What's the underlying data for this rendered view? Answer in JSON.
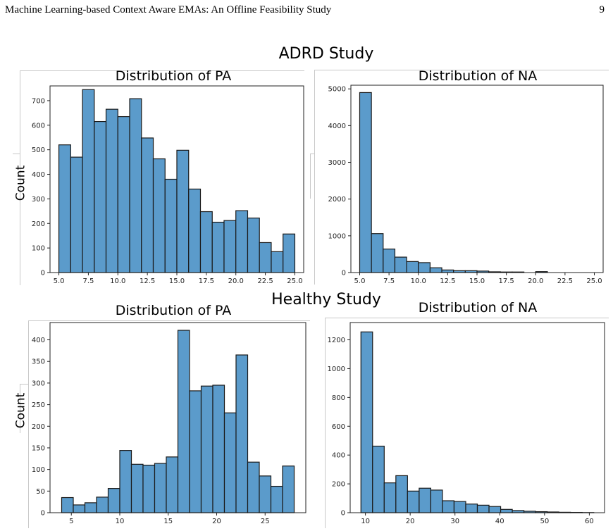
{
  "running_head": "Machine Learning-based Context Aware EMAs: An Offline Feasibility Study",
  "page_number": "9",
  "figure": {
    "adrd_title": "ADRD Study",
    "healthy_title": "Healthy Study",
    "count_label": "Count"
  },
  "bar_color": "#5b9bcb",
  "edge_color": "#1a1a1a",
  "chart_data": [
    {
      "id": "adrd-pa",
      "type": "bar",
      "title": "Distribution of PA",
      "xlim": [
        4.25,
        25.75
      ],
      "ylim": [
        0,
        760
      ],
      "xticks": [
        5.0,
        7.5,
        10.0,
        12.5,
        15.0,
        17.5,
        20.0,
        22.5,
        25.0
      ],
      "xtick_labels": [
        "5.0",
        "7.5",
        "10.0",
        "12.5",
        "15.0",
        "17.5",
        "20.0",
        "22.5",
        "25.0"
      ],
      "yticks": [
        0,
        100,
        200,
        300,
        400,
        500,
        600,
        700
      ],
      "bin_edges": [
        5.0,
        6.0,
        7.0,
        8.0,
        9.0,
        10.0,
        11.0,
        12.0,
        13.0,
        14.0,
        15.0,
        16.0,
        17.0,
        18.0,
        19.0,
        20.0,
        21.0,
        22.0,
        23.0,
        24.0,
        25.0
      ],
      "values": [
        520,
        470,
        745,
        615,
        665,
        635,
        708,
        548,
        463,
        380,
        498,
        340,
        248,
        205,
        212,
        252,
        222,
        122,
        85,
        157
      ]
    },
    {
      "id": "adrd-na",
      "type": "bar",
      "title": "Distribution of NA",
      "xlim": [
        4.25,
        25.75
      ],
      "ylim": [
        0,
        5100
      ],
      "xticks": [
        5.0,
        7.5,
        10.0,
        12.5,
        15.0,
        17.5,
        20.0,
        22.5,
        25.0
      ],
      "xtick_labels": [
        "5.0",
        "7.5",
        "10.0",
        "12.5",
        "15.0",
        "17.5",
        "20.0",
        "22.5",
        "25.0"
      ],
      "yticks": [
        0,
        1000,
        2000,
        3000,
        4000,
        5000
      ],
      "bin_edges": [
        5.0,
        6.0,
        7.0,
        8.0,
        9.0,
        10.0,
        11.0,
        12.0,
        13.0,
        14.0,
        15.0,
        16.0,
        17.0,
        18.0,
        19.0,
        20.0,
        21.0,
        22.0,
        23.0,
        24.0,
        25.0
      ],
      "values": [
        4900,
        1060,
        640,
        420,
        300,
        270,
        130,
        70,
        50,
        50,
        40,
        20,
        15,
        15,
        0,
        25,
        0,
        0,
        0,
        0
      ]
    },
    {
      "id": "healthy-pa",
      "type": "bar",
      "title": "Distribution of PA",
      "xlim": [
        2.8,
        29.2
      ],
      "ylim": [
        0,
        440
      ],
      "xticks": [
        5,
        10,
        15,
        20,
        25
      ],
      "xtick_labels": [
        "5",
        "10",
        "15",
        "20",
        "25"
      ],
      "yticks": [
        0,
        50,
        100,
        150,
        200,
        250,
        300,
        350,
        400
      ],
      "bin_edges": [
        4.0,
        5.2,
        6.4,
        7.6,
        8.8,
        10.0,
        11.2,
        12.4,
        13.6,
        14.8,
        16.0,
        17.2,
        18.4,
        19.6,
        20.8,
        22.0,
        23.2,
        24.4,
        25.6,
        26.8,
        28.0
      ],
      "values": [
        35,
        18,
        23,
        36,
        56,
        144,
        112,
        110,
        114,
        129,
        422,
        282,
        293,
        295,
        231,
        365,
        117,
        85,
        61,
        108
      ]
    },
    {
      "id": "healthy-na",
      "type": "bar",
      "title": "Distribution of NA",
      "xlim": [
        6.6,
        63.4
      ],
      "ylim": [
        0,
        1320
      ],
      "xticks": [
        10,
        20,
        30,
        40,
        50,
        60
      ],
      "xtick_labels": [
        "10",
        "20",
        "30",
        "40",
        "50",
        "60"
      ],
      "yticks": [
        0,
        200,
        400,
        600,
        800,
        1000,
        1200
      ],
      "bin_edges": [
        9.0,
        11.6,
        14.2,
        16.8,
        19.4,
        22.0,
        24.6,
        27.2,
        29.8,
        32.4,
        35.0,
        37.6,
        40.2,
        42.8,
        45.4,
        48.0,
        50.6,
        53.2,
        55.8,
        58.4,
        61.0
      ],
      "values": [
        1255,
        462,
        207,
        257,
        150,
        170,
        157,
        83,
        78,
        60,
        52,
        43,
        23,
        15,
        10,
        7,
        5,
        3,
        2,
        1
      ]
    }
  ]
}
